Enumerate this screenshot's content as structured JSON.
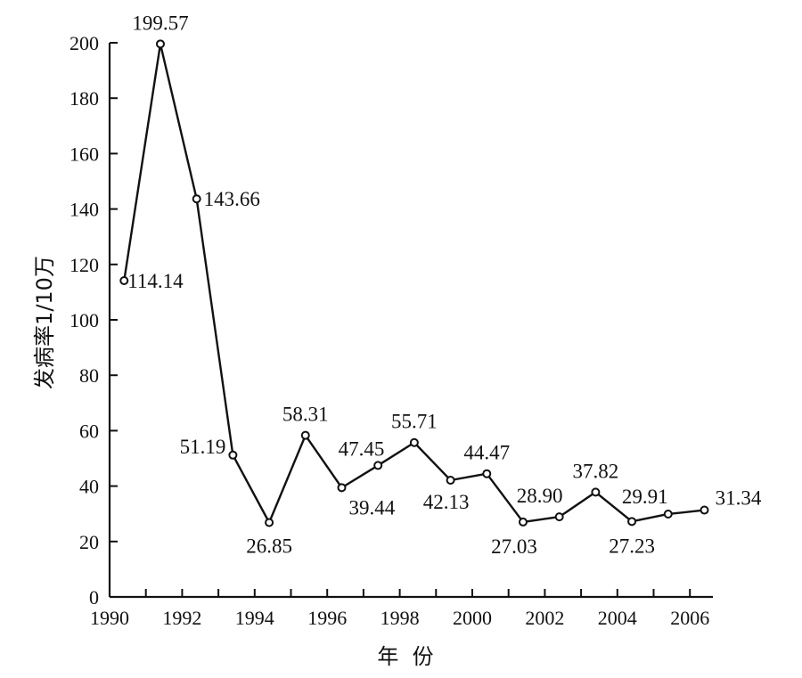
{
  "chart_data": {
    "type": "line",
    "title": "",
    "xlabel": "年  份",
    "ylabel": "发病率1/10万",
    "xlim": [
      1990,
      2006.6
    ],
    "ylim": [
      0,
      200
    ],
    "x_ticks": [
      1990,
      1992,
      1994,
      1996,
      1998,
      2000,
      2002,
      2004,
      2006
    ],
    "y_ticks": [
      0,
      20,
      40,
      60,
      80,
      100,
      120,
      140,
      160,
      180,
      200
    ],
    "grid": false,
    "legend": "none",
    "series": [
      {
        "x": [
          1990.4,
          1991.4,
          1992.4,
          1993.4,
          1994.4,
          1995.4,
          1996.4,
          1997.4,
          1998.4,
          1999.4,
          2000.4,
          2001.4,
          2002.4,
          2003.4,
          2004.4,
          2005.4,
          2006.4
        ],
        "values": [
          114.14,
          199.57,
          143.66,
          51.19,
          26.85,
          58.31,
          39.44,
          47.45,
          55.71,
          42.13,
          44.47,
          27.03,
          28.9,
          37.82,
          27.23,
          29.91,
          31.34
        ],
        "labels": [
          "114.14",
          "199.57",
          "143.66",
          "51.19",
          "26.85",
          "58.31",
          "39.44",
          "",
          "55.71",
          "42.13",
          "44.47",
          "27.03",
          "28.90",
          "37.82",
          "27.23",
          "29.91",
          "31.34"
        ]
      }
    ],
    "extra_labels": [
      "47.45"
    ]
  }
}
